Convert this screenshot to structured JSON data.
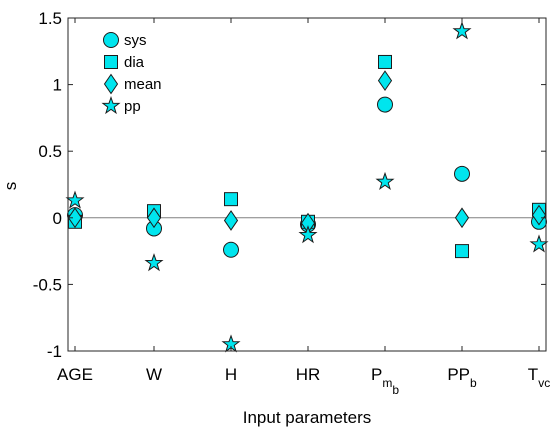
{
  "chart_data": {
    "type": "scatter",
    "xlabel": "Input parameters",
    "ylabel": "s",
    "ylim": [
      -1,
      1.5
    ],
    "yticks": [
      "-1",
      "-0.5",
      "0",
      "0.5",
      "1",
      "1.5"
    ],
    "categories": [
      {
        "label": "AGE",
        "sub": "",
        "subsub": ""
      },
      {
        "label": "W",
        "sub": "",
        "subsub": ""
      },
      {
        "label": "H",
        "sub": "",
        "subsub": ""
      },
      {
        "label": "HR",
        "sub": "",
        "subsub": ""
      },
      {
        "label": "P",
        "sub": "m",
        "subsub": "b"
      },
      {
        "label": "PP",
        "sub": "b",
        "subsub": ""
      },
      {
        "label": "T",
        "sub": "vc",
        "subsub": ""
      }
    ],
    "series": [
      {
        "name": "sys",
        "marker": "circle",
        "values": [
          0.02,
          -0.08,
          -0.24,
          -0.05,
          0.85,
          0.33,
          -0.03
        ]
      },
      {
        "name": "dia",
        "marker": "square",
        "values": [
          -0.03,
          0.05,
          0.14,
          -0.03,
          1.17,
          -0.25,
          0.06
        ]
      },
      {
        "name": "mean",
        "marker": "diamond",
        "values": [
          0.0,
          0.0,
          -0.02,
          -0.04,
          1.03,
          0.0,
          0.02
        ]
      },
      {
        "name": "pp",
        "marker": "star",
        "values": [
          0.13,
          -0.34,
          -0.95,
          -0.13,
          0.27,
          1.4,
          -0.2
        ]
      }
    ],
    "zero_line": true,
    "grid": false,
    "legend_position": "top-left",
    "colors": {
      "marker_fill": "#00e5ee",
      "marker_edge": "#1c1c1c",
      "axes": "#262626",
      "zero_line": "#808080"
    }
  }
}
